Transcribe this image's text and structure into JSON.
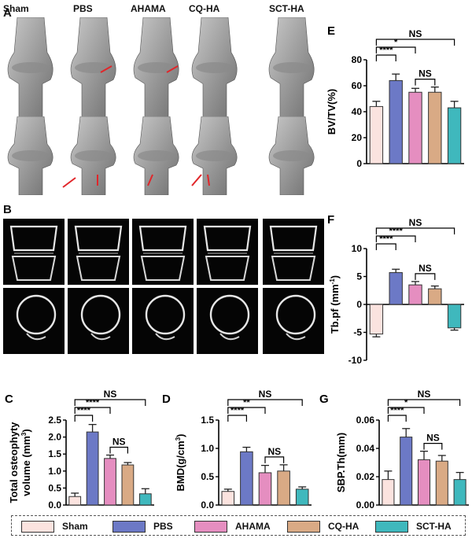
{
  "colors": {
    "Sham": "#fbe3df",
    "PBS": "#6c79c6",
    "AHAMA": "#e58ec0",
    "CQ-HA": "#d9aa85",
    "SCT-HA": "#3fb8bd",
    "arrow": "#e1262a",
    "bone": "#9a9a9a"
  },
  "panel_A": {
    "letter": "A",
    "groups": [
      "Sham",
      "PBS",
      "AHAMA",
      "CQ-HA",
      "SCT-HA"
    ],
    "icon": "bone-3d-render-icon"
  },
  "panel_B": {
    "letter": "B",
    "icon": "microct-section-icon"
  },
  "legend": {
    "items": [
      "Sham",
      "PBS",
      "AHAMA",
      "CQ-HA",
      "SCT-HA"
    ]
  },
  "chart_data": [
    {
      "id": "E",
      "type": "bar",
      "ylabel": "BV/TV(%)",
      "categories": [
        "Sham",
        "PBS",
        "AHAMA",
        "CQ-HA",
        "SCT-HA"
      ],
      "values": [
        44,
        64,
        55,
        55,
        43
      ],
      "errors": [
        4,
        5,
        3,
        4,
        5
      ],
      "ylim": [
        0,
        80
      ],
      "yticks": [
        0,
        20,
        40,
        60,
        80
      ],
      "tick_labels": [
        "0",
        "20",
        "40",
        "60",
        "80"
      ],
      "significance": [
        {
          "from": 0,
          "to": 4,
          "label": "NS"
        },
        {
          "from": 0,
          "to": 1,
          "label": "****"
        },
        {
          "from": 0,
          "to": 2,
          "label": "*"
        },
        {
          "from": 2,
          "to": 3,
          "label": "NS"
        }
      ]
    },
    {
      "id": "F",
      "type": "bar",
      "ylabel": "Tb.pf  (mm-1)",
      "categories": [
        "Sham",
        "PBS",
        "AHAMA",
        "CQ-HA",
        "SCT-HA"
      ],
      "values": [
        -5.3,
        5.7,
        3.5,
        2.8,
        -4.2
      ],
      "errors": [
        0.5,
        0.6,
        0.6,
        0.5,
        0.4
      ],
      "ylim": [
        -10,
        10
      ],
      "yticks": [
        -10,
        -5,
        0,
        5,
        10
      ],
      "tick_labels": [
        "-10",
        "-5",
        "0",
        "5",
        "10"
      ],
      "significance": [
        {
          "from": 0,
          "to": 4,
          "label": "NS"
        },
        {
          "from": 0,
          "to": 1,
          "label": "****"
        },
        {
          "from": 0,
          "to": 2,
          "label": "****"
        },
        {
          "from": 2,
          "to": 3,
          "label": "NS"
        }
      ]
    },
    {
      "id": "C",
      "type": "bar",
      "ylabel": "Total osteophyte volume (mm3)",
      "categories": [
        "Sham",
        "PBS",
        "AHAMA",
        "CQ-HA",
        "SCT-HA"
      ],
      "values": [
        0.25,
        2.15,
        1.37,
        1.18,
        0.33
      ],
      "errors": [
        0.1,
        0.22,
        0.1,
        0.07,
        0.15
      ],
      "ylim": [
        0,
        2.5
      ],
      "yticks": [
        0.0,
        0.5,
        1.0,
        1.5,
        2.0,
        2.5
      ],
      "tick_labels": [
        "0.0",
        "0.5",
        "1.0",
        "1.5",
        "2.0",
        "2.5"
      ],
      "significance": [
        {
          "from": 0,
          "to": 4,
          "label": "NS"
        },
        {
          "from": 0,
          "to": 1,
          "label": "****"
        },
        {
          "from": 0,
          "to": 2,
          "label": "****"
        },
        {
          "from": 2,
          "to": 3,
          "label": "NS"
        }
      ]
    },
    {
      "id": "D",
      "type": "bar",
      "ylabel": "BMD(g/cm3)",
      "categories": [
        "Sham",
        "PBS",
        "AHAMA",
        "CQ-HA",
        "SCT-HA"
      ],
      "values": [
        0.24,
        0.94,
        0.57,
        0.6,
        0.28
      ],
      "errors": [
        0.04,
        0.08,
        0.13,
        0.11,
        0.04
      ],
      "ylim": [
        0,
        1.5
      ],
      "yticks": [
        0.0,
        0.5,
        1.0,
        1.5
      ],
      "tick_labels": [
        "0.0",
        "0.5",
        "1.0",
        "1.5"
      ],
      "significance": [
        {
          "from": 0,
          "to": 4,
          "label": "NS"
        },
        {
          "from": 0,
          "to": 1,
          "label": "****"
        },
        {
          "from": 0,
          "to": 2,
          "label": "**"
        },
        {
          "from": 2,
          "to": 3,
          "label": "NS"
        }
      ]
    },
    {
      "id": "G",
      "type": "bar",
      "ylabel": "SBP.Th(mm)",
      "categories": [
        "Sham",
        "PBS",
        "AHAMA",
        "CQ-HA",
        "SCT-HA"
      ],
      "values": [
        0.018,
        0.048,
        0.032,
        0.031,
        0.018
      ],
      "errors": [
        0.006,
        0.006,
        0.006,
        0.004,
        0.005
      ],
      "ylim": [
        0,
        0.06
      ],
      "yticks": [
        0.0,
        0.02,
        0.04,
        0.06
      ],
      "tick_labels": [
        "0.00",
        "0.02",
        "0.04",
        "0.06"
      ],
      "significance": [
        {
          "from": 0,
          "to": 4,
          "label": "NS"
        },
        {
          "from": 0,
          "to": 1,
          "label": "****"
        },
        {
          "from": 0,
          "to": 2,
          "label": "*"
        },
        {
          "from": 2,
          "to": 3,
          "label": "NS"
        }
      ]
    }
  ]
}
